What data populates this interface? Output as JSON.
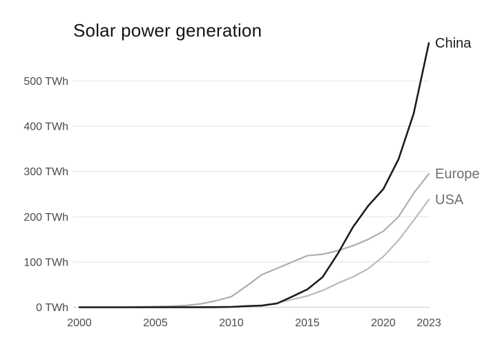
{
  "page": {
    "background": "#ffffff"
  },
  "chart_data": {
    "type": "line",
    "title": "Solar power generation",
    "unit": "TWh",
    "grid": true,
    "legend_position": "right-end-labels",
    "xlim": [
      2000,
      2023
    ],
    "ylim": [
      0,
      590
    ],
    "x": [
      2000,
      2001,
      2002,
      2003,
      2004,
      2005,
      2006,
      2007,
      2008,
      2009,
      2010,
      2011,
      2012,
      2013,
      2014,
      2015,
      2016,
      2017,
      2018,
      2019,
      2020,
      2021,
      2022,
      2023
    ],
    "series": [
      {
        "name": "China",
        "line_color": "#1c1c1c",
        "label_color": "#1a1a1a",
        "values": [
          0.02,
          0.03,
          0.05,
          0.06,
          0.08,
          0.08,
          0.12,
          0.12,
          0.15,
          0.3,
          0.7,
          2.6,
          3.6,
          8.4,
          23.5,
          39.5,
          66.5,
          118,
          177,
          224,
          261,
          327,
          428,
          584
        ]
      },
      {
        "name": "Europe",
        "line_color": "#aeaeae",
        "label_color": "#6e6e6e",
        "values": [
          0.1,
          0.2,
          0.3,
          0.5,
          0.8,
          1.5,
          2.6,
          3.9,
          7.6,
          14.5,
          23.5,
          47,
          72,
          86,
          100,
          114,
          117,
          125,
          136,
          150,
          168,
          200,
          252,
          295
        ]
      },
      {
        "name": "USA",
        "line_color": "#bababa",
        "label_color": "#6e6e6e",
        "values": [
          0.5,
          0.5,
          0.6,
          0.5,
          0.6,
          0.6,
          0.5,
          0.6,
          0.9,
          0.9,
          1.2,
          1.8,
          4.3,
          9,
          17,
          25,
          37,
          53,
          67,
          85,
          112,
          148,
          192,
          238
        ]
      }
    ],
    "y_ticks": [
      {
        "value": 0,
        "label": "0 TWh"
      },
      {
        "value": 100,
        "label": "100 TWh"
      },
      {
        "value": 200,
        "label": "200 TWh"
      },
      {
        "value": 300,
        "label": "300 TWh"
      },
      {
        "value": 400,
        "label": "400 TWh"
      },
      {
        "value": 500,
        "label": "500 TWh"
      }
    ],
    "x_ticks": [
      {
        "value": 2000,
        "label": "2000"
      },
      {
        "value": 2005,
        "label": "2005"
      },
      {
        "value": 2010,
        "label": "2010"
      },
      {
        "value": 2015,
        "label": "2015"
      },
      {
        "value": 2020,
        "label": "2020"
      },
      {
        "value": 2023,
        "label": "2023"
      }
    ],
    "colors": {
      "gridline": "#e6e6e6",
      "zero_line": "#d4d4d4",
      "tick_text": "#4a4a4a",
      "title_text": "#141414"
    }
  }
}
